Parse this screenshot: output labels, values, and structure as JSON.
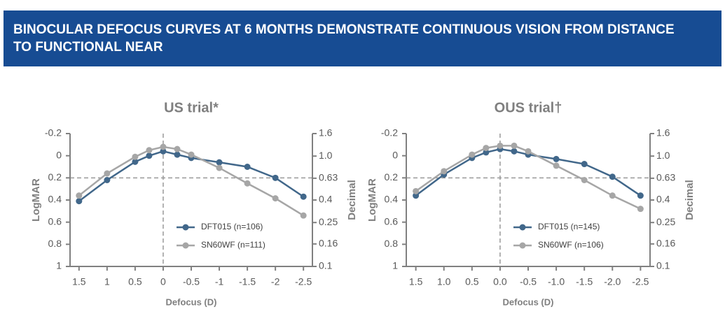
{
  "header": {
    "title": "BINOCULAR DEFOCUS CURVES AT 6 MONTHS DEMONSTRATE CONTINUOUS VISION FROM DISTANCE TO FUNCTIONAL NEAR"
  },
  "chart_data": [
    {
      "type": "line",
      "title": "US trial*",
      "x_label": "Defocus (D)",
      "y_label": "LogMAR",
      "y2_label": "Decimal",
      "x": [
        1.5,
        1,
        0.5,
        0.25,
        0,
        -0.25,
        -0.5,
        -1,
        -1.5,
        -2,
        -2.5
      ],
      "series": [
        {
          "name": "DFT015 (n=106)",
          "color": "#41678a",
          "values": [
            0.41,
            0.22,
            0.055,
            0.0,
            -0.04,
            -0.01,
            0.02,
            0.06,
            0.1,
            0.2,
            0.37
          ]
        },
        {
          "name": "SN60WF (n=111)",
          "color": "#a6a6a6",
          "values": [
            0.36,
            0.16,
            0.01,
            -0.05,
            -0.08,
            -0.06,
            -0.01,
            0.11,
            0.25,
            0.385,
            0.54
          ]
        }
      ],
      "xlim": [
        1.66,
        -2.66
      ],
      "xticks": [
        1.5,
        1,
        0.5,
        0,
        -0.5,
        -1,
        -1.5,
        -2,
        -2.5
      ],
      "ylim": [
        -0.2,
        1
      ],
      "yticks": [
        -0.2,
        0,
        0.2,
        0.4,
        0.6,
        0.8,
        1
      ],
      "y2lim": [
        1.6,
        0.1
      ],
      "y2log": true,
      "y2ticks": [
        1.6,
        {
          "value": 1,
          "label": "1.0"
        },
        0.63,
        0.4,
        0.25,
        0.16,
        0.1
      ],
      "vline": 0,
      "hline": 0.2,
      "legend": "lower center"
    },
    {
      "type": "line",
      "title": "OUS trial†",
      "x_label": "Defocus (D)",
      "y_label": "LogMAR",
      "y2_label": "Decimal",
      "x": [
        1.5,
        1,
        0.5,
        0.25,
        0,
        -0.25,
        -0.5,
        -1,
        -1.5,
        -2,
        -2.5
      ],
      "series": [
        {
          "name": "DFT015 (n=145)",
          "color": "#41678a",
          "values": [
            0.36,
            0.17,
            0.02,
            -0.03,
            -0.06,
            -0.04,
            -0.01,
            0.03,
            0.075,
            0.19,
            0.36
          ]
        },
        {
          "name": "SN60WF (n=106)",
          "color": "#a6a6a6",
          "values": [
            0.32,
            0.14,
            -0.01,
            -0.07,
            -0.09,
            -0.09,
            -0.04,
            0.09,
            0.22,
            0.36,
            0.48
          ]
        }
      ],
      "xlim": [
        1.67,
        -2.67
      ],
      "xticks": [
        1.5,
        {
          "value": 1,
          "label": "1.0"
        },
        0.5,
        {
          "value": 0,
          "label": "0.0"
        },
        -0.5,
        {
          "value": -1,
          "label": "-1.0"
        },
        -1.5,
        {
          "value": -2,
          "label": "-2.0"
        },
        -2.5
      ],
      "ylim": [
        -0.2,
        1
      ],
      "yticks": [
        -0.2,
        0,
        0.2,
        0.4,
        0.6,
        0.8,
        1
      ],
      "y2lim": [
        1.6,
        0.1
      ],
      "y2log": true,
      "y2ticks": [
        1.6,
        {
          "value": 1,
          "label": "1.0"
        },
        0.63,
        0.4,
        0.25,
        0.16,
        0.1
      ],
      "vline": 0,
      "hline": 0.2,
      "legend": "lower center"
    }
  ]
}
